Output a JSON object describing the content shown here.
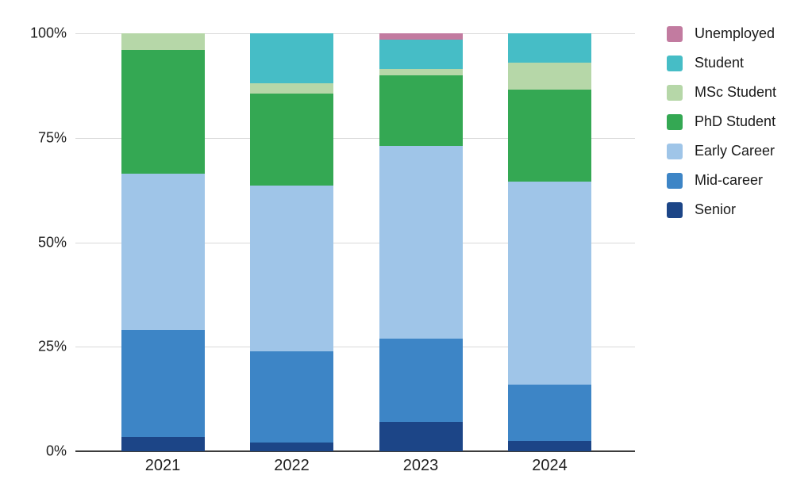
{
  "chart_data": {
    "type": "bar",
    "variant": "stacked-100-percent",
    "title": "",
    "xlabel": "",
    "ylabel": "",
    "categories": [
      "2021",
      "2022",
      "2023",
      "2024"
    ],
    "series": [
      {
        "name": "Senior",
        "color": "#1c4587",
        "values": [
          3.5,
          2.0,
          7.0,
          2.5
        ]
      },
      {
        "name": "Mid-career",
        "color": "#3d85c6",
        "values": [
          25.5,
          22.0,
          20.0,
          13.5
        ]
      },
      {
        "name": "Early Career",
        "color": "#9fc5e8",
        "values": [
          37.5,
          39.5,
          46.0,
          48.5
        ]
      },
      {
        "name": "PhD Student",
        "color": "#34a853",
        "values": [
          29.5,
          22.0,
          17.0,
          22.0
        ]
      },
      {
        "name": "MSc Student",
        "color": "#b6d7a8",
        "values": [
          4.0,
          2.5,
          1.5,
          6.5
        ]
      },
      {
        "name": "Student",
        "color": "#46bdc6",
        "values": [
          0.0,
          12.0,
          7.0,
          7.0
        ]
      },
      {
        "name": "Unemployed",
        "color": "#c27ba0",
        "values": [
          0.0,
          0.0,
          1.5,
          0.0
        ]
      }
    ],
    "y_ticks": [
      "0%",
      "25%",
      "50%",
      "75%",
      "100%"
    ],
    "ylim": [
      0,
      100
    ],
    "grid": true,
    "gridline_color": "#d9d9d9",
    "axis_line_color": "#3c3c3c",
    "legend_position": "right",
    "legend_order": [
      "Unemployed",
      "Student",
      "MSc Student",
      "PhD Student",
      "Early Career",
      "Mid-career",
      "Senior"
    ]
  }
}
